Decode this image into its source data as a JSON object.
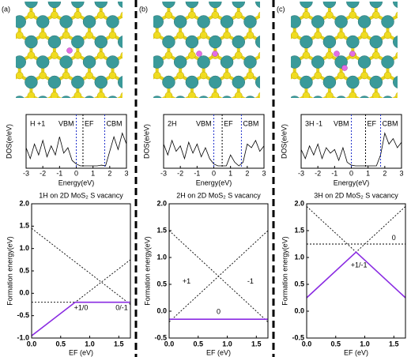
{
  "panel_labels": [
    "(a)",
    "(b)",
    "(c)"
  ],
  "chart_data": [
    {
      "type": "line",
      "annotation": "H +1",
      "x_label": "Energy(eV)",
      "y_label": "DOS(e/eV)",
      "x": [
        -3,
        -2.75,
        -2.5,
        -2.25,
        -2,
        -1.75,
        -1.5,
        -1.25,
        -1,
        -0.75,
        -0.5,
        -0.25,
        0,
        0.25,
        0.5,
        0.75,
        1,
        1.25,
        1.5,
        1.75,
        2,
        2.25,
        2.5,
        2.75,
        3
      ],
      "series": [
        {
          "color": "#000000",
          "values": [
            0.5,
            0.2,
            0.6,
            0.3,
            0.7,
            0.25,
            0.55,
            0.3,
            0.8,
            0.35,
            0.5,
            0.15,
            0.05,
            0,
            0,
            0,
            0,
            0,
            0.02,
            0,
            0.4,
            0.8,
            0.45,
            0.9,
            0.6
          ]
        }
      ],
      "xlim": [
        -3,
        3
      ],
      "xticks": [
        -3,
        -2,
        -1,
        0,
        1,
        2,
        3
      ],
      "ylim": [
        0,
        1
      ],
      "markers": [
        {
          "label": "VBM",
          "x": 0,
          "color": "#2233cc"
        },
        {
          "label": "EF",
          "x": 0.4,
          "color": "#000000"
        },
        {
          "label": "CBM",
          "x": 1.7,
          "color": "#2233cc"
        }
      ]
    },
    {
      "type": "line",
      "title": "1H on 2D MoS₂ S vacancy",
      "x_label": "EF (eV)",
      "y_label": "Formation energy(eV)",
      "xlim": [
        0,
        1.7
      ],
      "ylim": [
        -1,
        2
      ],
      "xticks": [
        {
          "value": 0,
          "label": "0.0"
        },
        {
          "value": 0.5,
          "label": "0.5"
        },
        {
          "value": 1,
          "label": "1.0"
        },
        {
          "value": 1.5,
          "label": "1.5"
        }
      ],
      "yticks": [
        {
          "value": -1,
          "label": "-1.0"
        },
        {
          "value": -0.5,
          "label": "-0.5"
        },
        {
          "value": 0,
          "label": "0.0"
        },
        {
          "value": 0.5,
          "label": "0.5"
        },
        {
          "value": 1,
          "label": "1.0"
        },
        {
          "value": 1.5,
          "label": "1.5"
        },
        {
          "value": 2,
          "label": "2.0"
        }
      ],
      "series": [
        {
          "color": "#000000",
          "dashed": true,
          "x": [
            0,
            1.7
          ],
          "values": [
            -0.95,
            0.75
          ]
        },
        {
          "color": "#000000",
          "dashed": true,
          "x": [
            0,
            1.7
          ],
          "values": [
            1.45,
            -0.25
          ]
        },
        {
          "color": "#000000",
          "dashed": true,
          "x": [
            0,
            1.7
          ],
          "values": [
            -0.2,
            -0.2
          ]
        },
        {
          "color": "#8a2be2",
          "dashed": false,
          "x": [
            0,
            0.75,
            1.7
          ],
          "values": [
            -0.95,
            -0.2,
            -0.2
          ]
        }
      ],
      "annotations": [
        "+1/0",
        "0/-1"
      ]
    },
    {
      "type": "line",
      "annotation": "2H",
      "x_label": "Energy(eV)",
      "y_label": "DOS(e/eV)",
      "x": [
        -3,
        -2.75,
        -2.5,
        -2.25,
        -2,
        -1.75,
        -1.5,
        -1.25,
        -1,
        -0.75,
        -0.5,
        -0.25,
        0,
        0.25,
        0.5,
        0.75,
        1,
        1.25,
        1.5,
        1.75,
        2,
        2.25,
        2.5,
        2.75,
        3
      ],
      "series": [
        {
          "color": "#000000",
          "values": [
            0.6,
            0.3,
            0.7,
            0.4,
            0.55,
            0.2,
            0.65,
            0.35,
            0.6,
            0.25,
            0.5,
            0.2,
            0.05,
            0,
            0,
            0,
            0.3,
            0.1,
            0,
            0.1,
            0.6,
            0.5,
            0.7,
            0.4,
            0.55
          ]
        }
      ],
      "xlim": [
        -3,
        3
      ],
      "xticks": [
        -3,
        -2,
        -1,
        0,
        1,
        2,
        3
      ],
      "ylim": [
        0,
        1
      ],
      "markers": [
        {
          "label": "VBM",
          "x": 0,
          "color": "#2233cc"
        },
        {
          "label": "EF",
          "x": 0.5,
          "color": "#000000"
        },
        {
          "label": "CBM",
          "x": 1.65,
          "color": "#2233cc"
        }
      ]
    },
    {
      "type": "line",
      "title": "2H on 2D MoS₂ S vacancy",
      "x_label": "EF (eV)",
      "y_label": "Formation energy(eV)",
      "xlim": [
        0,
        1.7
      ],
      "ylim": [
        -0.5,
        2
      ],
      "xticks": [
        {
          "value": 0,
          "label": "0.0"
        },
        {
          "value": 0.5,
          "label": "0.5"
        },
        {
          "value": 1,
          "label": "1.0"
        },
        {
          "value": 1.5,
          "label": "1.5"
        }
      ],
      "yticks": [
        {
          "value": -0.5,
          "label": "-0.5"
        },
        {
          "value": 0,
          "label": "0.0"
        },
        {
          "value": 0.5,
          "label": "0.5"
        },
        {
          "value": 1,
          "label": "1.0"
        },
        {
          "value": 1.5,
          "label": "1.5"
        },
        {
          "value": 2,
          "label": "2.0"
        }
      ],
      "series": [
        {
          "color": "#000000",
          "dashed": true,
          "x": [
            0,
            1.7
          ],
          "values": [
            -0.2,
            1.5
          ]
        },
        {
          "color": "#000000",
          "dashed": true,
          "x": [
            0,
            1.7
          ],
          "values": [
            1.5,
            -0.2
          ]
        },
        {
          "color": "#8a2be2",
          "dashed": false,
          "x": [
            0,
            1.7
          ],
          "values": [
            -0.15,
            -0.15
          ]
        }
      ],
      "annotations": [
        "+1",
        "-1",
        "0"
      ]
    },
    {
      "type": "line",
      "annotation": "3H -1",
      "x_label": "Energy(eV)",
      "y_label": "DOS(e/eV)",
      "x": [
        -3,
        -2.75,
        -2.5,
        -2.25,
        -2,
        -1.75,
        -1.5,
        -1.25,
        -1,
        -0.75,
        -0.5,
        -0.25,
        0,
        0.25,
        0.5,
        0.75,
        1,
        1.25,
        1.5,
        1.75,
        2,
        2.25,
        2.5,
        2.75,
        3
      ],
      "series": [
        {
          "color": "#000000",
          "values": [
            0.45,
            0.2,
            0.55,
            0.3,
            0.6,
            0.2,
            0.5,
            0.35,
            0.45,
            0.15,
            0.5,
            0.1,
            0.02,
            0,
            0,
            0,
            0,
            0,
            0,
            0.3,
            0.9,
            0.6,
            0.75,
            0.5,
            0.65
          ]
        }
      ],
      "xlim": [
        -3,
        3
      ],
      "xticks": [
        -3,
        -2,
        -1,
        0,
        1,
        2,
        3
      ],
      "ylim": [
        0,
        1
      ],
      "markers": [
        {
          "label": "VBM",
          "x": 0,
          "color": "#2233cc"
        },
        {
          "label": "EF",
          "x": 0.85,
          "color": "#000000"
        },
        {
          "label": "CBM",
          "x": 1.75,
          "color": "#2233cc"
        }
      ]
    },
    {
      "type": "line",
      "title": "3H on 2D MoS₂ S vacancy",
      "x_label": "EF (eV)",
      "y_label": "Formation energy(eV)",
      "xlim": [
        0,
        1.7
      ],
      "ylim": [
        -0.5,
        2
      ],
      "xticks": [
        {
          "value": 0,
          "label": "0.0"
        },
        {
          "value": 0.5,
          "label": "0.5"
        },
        {
          "value": 1,
          "label": "1.0"
        },
        {
          "value": 1.5,
          "label": "1.5"
        }
      ],
      "yticks": [
        {
          "value": -0.5,
          "label": "-0.5"
        },
        {
          "value": 0,
          "label": "0.0"
        },
        {
          "value": 0.5,
          "label": "0.5"
        },
        {
          "value": 1,
          "label": "1.0"
        },
        {
          "value": 1.5,
          "label": "1.5"
        },
        {
          "value": 2,
          "label": "2.0"
        }
      ],
      "series": [
        {
          "color": "#000000",
          "dashed": true,
          "x": [
            0,
            1.7
          ],
          "values": [
            0.25,
            1.95
          ]
        },
        {
          "color": "#000000",
          "dashed": true,
          "x": [
            0,
            1.7
          ],
          "values": [
            1.95,
            0.25
          ]
        },
        {
          "color": "#000000",
          "dashed": true,
          "x": [
            0,
            1.7
          ],
          "values": [
            1.25,
            1.25
          ]
        },
        {
          "color": "#8a2be2",
          "dashed": false,
          "x": [
            0,
            0.85,
            1.7
          ],
          "values": [
            0.25,
            1.1,
            0.25
          ]
        }
      ],
      "annotations": [
        "0",
        "+1/-1"
      ]
    }
  ]
}
